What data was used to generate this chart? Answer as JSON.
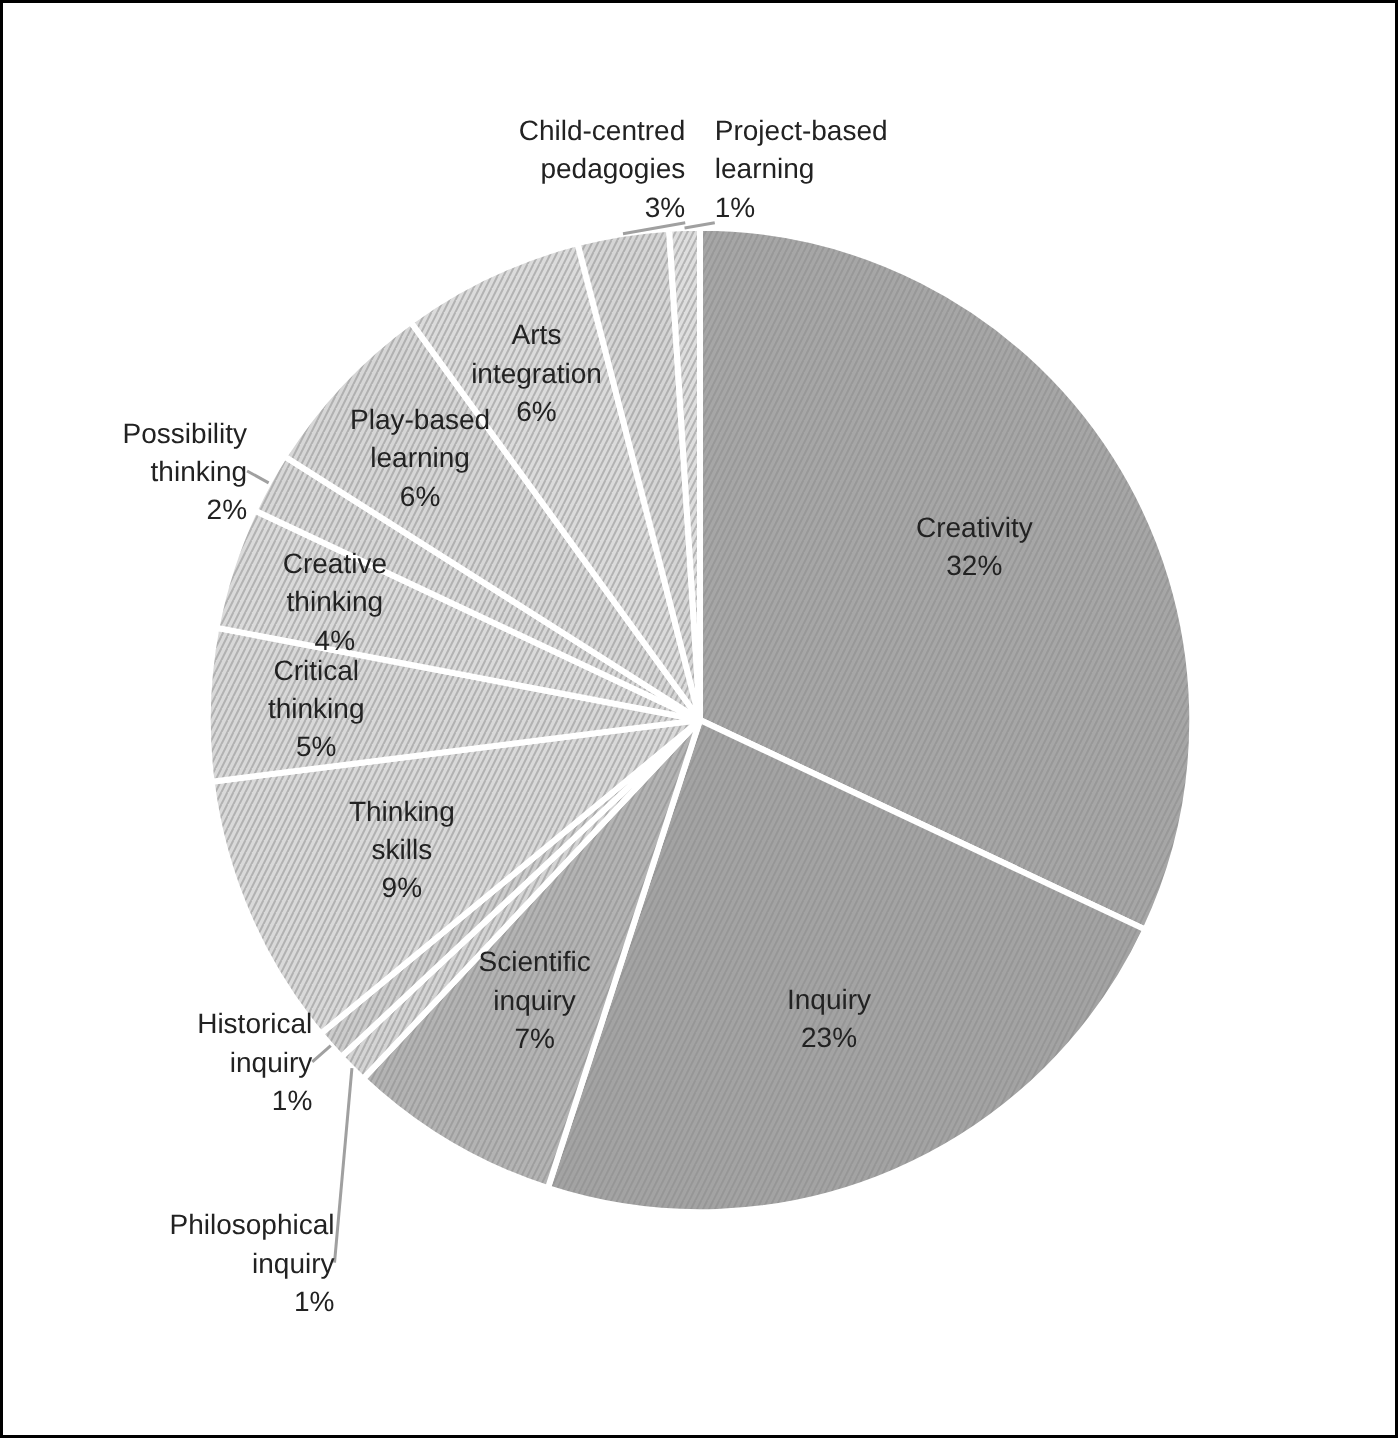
{
  "chart_data": {
    "type": "pie",
    "categories": [
      "Creativity",
      "Inquiry",
      "Scientific inquiry",
      "Philosophical inquiry",
      "Historical inquiry",
      "Thinking skills",
      "Critical thinking",
      "Creative thinking",
      "Possibility thinking",
      "Play-based learning",
      "Arts integration",
      "Child-centred pedagogies",
      "Project-based learning"
    ],
    "values": [
      32,
      23,
      7,
      1,
      1,
      9,
      5,
      4,
      2,
      6,
      6,
      3,
      1
    ],
    "value_labels": [
      "32%",
      "23%",
      "7%",
      "1%",
      "1%",
      "9%",
      "5%",
      "4%",
      "2%",
      "6%",
      "6%",
      "3%",
      "1%"
    ],
    "colors": [
      "#a6a6a6",
      "#a3a3a3",
      "#b3b3b3",
      "#d4d4d4",
      "#cccccc",
      "#d9d9d9",
      "#d8d8d8",
      "#dadada",
      "#d7d7d7",
      "#d6d6d6",
      "#dbdbdb",
      "#d5d5d5",
      "#dedede"
    ]
  }
}
